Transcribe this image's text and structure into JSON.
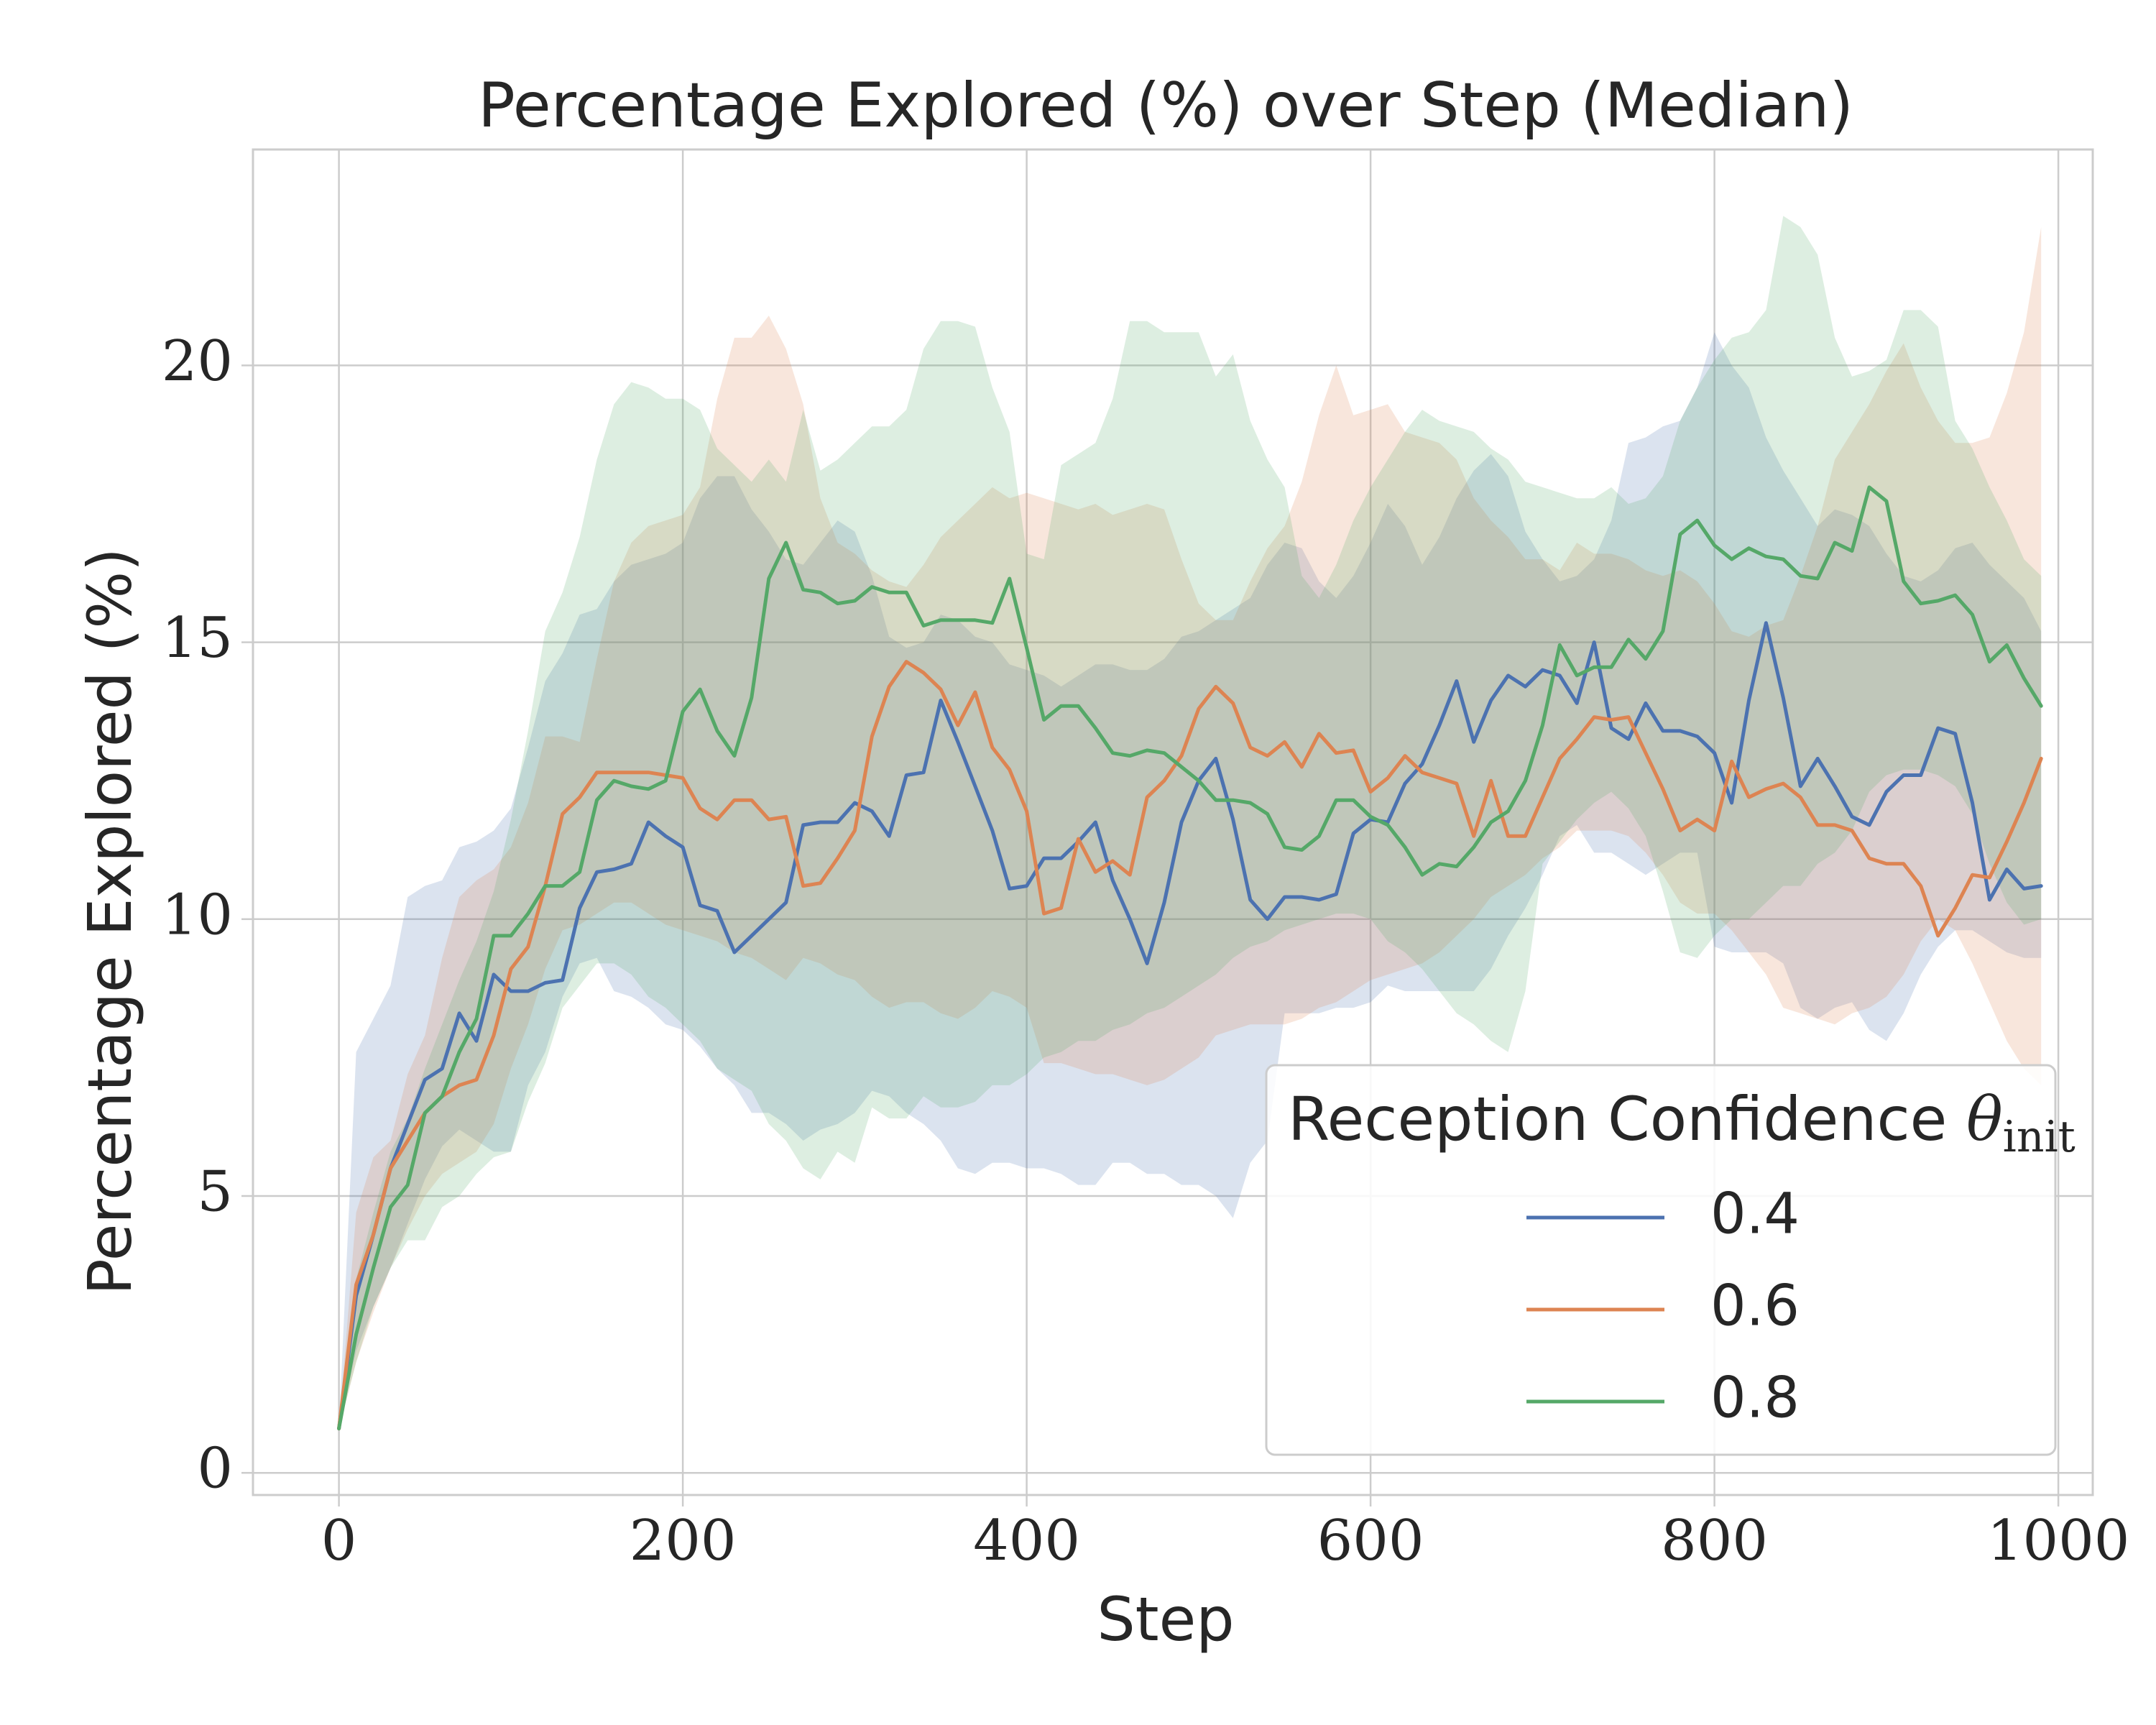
{
  "chart_data": {
    "type": "line",
    "title": "Percentage Explored (%) over Step (Median)",
    "xlabel": "Step",
    "ylabel": "Percentage Explored (%)",
    "xlim": [
      -50,
      1020
    ],
    "ylim": [
      -0.4,
      23.9
    ],
    "xticks": [
      0,
      200,
      400,
      600,
      800,
      1000
    ],
    "yticks": [
      0,
      5,
      10,
      15,
      20
    ],
    "grid": true,
    "legend": {
      "title_main": "Reception Confidence ",
      "title_symbol": "θ",
      "title_sub": "init",
      "position": "lower-right"
    },
    "x": [
      0,
      10,
      20,
      30,
      40,
      50,
      60,
      70,
      80,
      90,
      100,
      110,
      120,
      130,
      140,
      150,
      160,
      170,
      180,
      190,
      200,
      210,
      220,
      230,
      240,
      250,
      260,
      270,
      280,
      290,
      300,
      310,
      320,
      330,
      340,
      350,
      360,
      370,
      380,
      390,
      400,
      410,
      420,
      430,
      440,
      450,
      460,
      470,
      480,
      490,
      500,
      510,
      520,
      530,
      540,
      550,
      560,
      570,
      580,
      590,
      600,
      610,
      620,
      630,
      640,
      650,
      660,
      670,
      680,
      690,
      700,
      710,
      720,
      730,
      740,
      750,
      760,
      770,
      780,
      790,
      800,
      810,
      820,
      830,
      840,
      850,
      860,
      870,
      880,
      890,
      900,
      910,
      920,
      930,
      940,
      950,
      960,
      970,
      980,
      990
    ],
    "series": [
      {
        "name": "0.4",
        "color": "#4c72b0",
        "values": [
          0.8,
          3.2,
          4.3,
          5.5,
          6.3,
          7.1,
          7.3,
          8.3,
          7.8,
          9.0,
          8.7,
          8.7,
          8.85,
          8.9,
          10.2,
          10.85,
          10.9,
          11.0,
          11.75,
          11.5,
          11.3,
          10.25,
          10.15,
          9.4,
          9.7,
          10.0,
          10.3,
          11.7,
          11.75,
          11.75,
          12.1,
          11.95,
          11.5,
          12.6,
          12.65,
          13.95,
          13.2,
          12.4,
          11.6,
          10.55,
          10.6,
          11.1,
          11.1,
          11.4,
          11.75,
          10.7,
          10.0,
          9.2,
          10.3,
          11.75,
          12.5,
          12.9,
          11.8,
          10.35,
          10.0,
          10.4,
          10.4,
          10.35,
          10.45,
          11.55,
          11.8,
          11.75,
          12.45,
          12.8,
          13.5,
          14.3,
          13.2,
          13.95,
          14.4,
          14.2,
          14.5,
          14.4,
          13.9,
          15.0,
          13.45,
          13.25,
          13.9,
          13.4,
          13.4,
          13.3,
          13.0,
          12.1,
          13.95,
          15.35,
          14.0,
          12.4,
          12.9,
          12.4,
          11.85,
          11.7,
          12.3,
          12.6,
          12.6,
          13.45,
          13.35,
          12.1,
          10.35,
          10.9,
          10.55,
          10.6
        ],
        "lower": [
          0.8,
          2.2,
          3.0,
          3.7,
          4.5,
          5.3,
          5.9,
          6.2,
          6.0,
          5.8,
          5.8,
          7.0,
          7.6,
          8.6,
          9.2,
          9.3,
          8.7,
          8.6,
          8.4,
          8.1,
          8.0,
          7.7,
          7.3,
          7.0,
          6.5,
          6.5,
          6.3,
          6.0,
          6.2,
          6.3,
          6.5,
          6.9,
          6.8,
          6.5,
          6.3,
          6.0,
          5.5,
          5.4,
          5.6,
          5.6,
          5.5,
          5.5,
          5.4,
          5.2,
          5.2,
          5.6,
          5.6,
          5.4,
          5.4,
          5.2,
          5.2,
          5.0,
          4.6,
          5.6,
          6.0,
          8.3,
          8.3,
          8.3,
          8.4,
          8.4,
          8.5,
          8.8,
          8.7,
          8.7,
          8.7,
          8.7,
          8.7,
          9.1,
          9.7,
          10.2,
          10.8,
          11.5,
          11.7,
          11.2,
          11.2,
          11.0,
          10.8,
          11.0,
          11.2,
          11.2,
          9.5,
          9.4,
          9.4,
          9.4,
          9.2,
          8.4,
          8.2,
          8.4,
          8.5,
          8.0,
          7.8,
          8.3,
          9.0,
          9.5,
          9.8,
          9.8,
          9.6,
          9.4,
          9.3,
          9.3
        ],
        "upper": [
          0.8,
          7.6,
          8.2,
          8.8,
          10.4,
          10.6,
          10.7,
          11.3,
          11.4,
          11.6,
          12.0,
          13.1,
          14.3,
          14.8,
          15.5,
          15.6,
          16.1,
          16.4,
          16.5,
          16.6,
          16.8,
          17.6,
          18.0,
          18.0,
          17.4,
          17.0,
          16.5,
          16.4,
          16.8,
          17.2,
          17.0,
          16.2,
          15.1,
          14.9,
          15.0,
          15.5,
          15.4,
          15.1,
          15.0,
          14.6,
          14.5,
          14.4,
          14.2,
          14.4,
          14.6,
          14.6,
          14.5,
          14.5,
          14.7,
          15.1,
          15.2,
          15.4,
          15.6,
          15.8,
          16.4,
          16.8,
          16.7,
          16.1,
          15.8,
          16.2,
          16.8,
          17.5,
          17.1,
          16.4,
          16.9,
          17.6,
          18.1,
          18.4,
          18.0,
          17.0,
          16.5,
          16.1,
          16.2,
          16.5,
          17.2,
          18.6,
          18.7,
          18.9,
          19.0,
          19.6,
          20.6,
          20.0,
          19.6,
          18.7,
          18.1,
          17.6,
          17.1,
          17.4,
          17.3,
          17.1,
          16.6,
          16.2,
          16.1,
          16.3,
          16.7,
          16.8,
          16.4,
          16.1,
          15.8,
          15.2
        ]
      },
      {
        "name": "0.6",
        "color": "#dd8452",
        "values": [
          0.8,
          3.4,
          4.3,
          5.5,
          6.0,
          6.5,
          6.8,
          7.0,
          7.1,
          7.9,
          9.1,
          9.5,
          10.6,
          11.9,
          12.2,
          12.65,
          12.65,
          12.65,
          12.65,
          12.6,
          12.55,
          12.0,
          11.8,
          12.15,
          12.15,
          11.8,
          11.85,
          10.6,
          10.65,
          11.1,
          11.6,
          13.3,
          14.2,
          14.65,
          14.45,
          14.15,
          13.5,
          14.1,
          13.1,
          12.7,
          11.95,
          10.1,
          10.2,
          11.45,
          10.85,
          11.05,
          10.8,
          12.2,
          12.5,
          12.95,
          13.8,
          14.2,
          13.9,
          13.1,
          12.95,
          13.2,
          12.75,
          13.35,
          13.0,
          13.05,
          12.3,
          12.55,
          12.95,
          12.65,
          12.55,
          12.45,
          11.5,
          12.5,
          11.5,
          11.5,
          12.2,
          12.9,
          13.25,
          13.65,
          13.6,
          13.65,
          13.0,
          12.35,
          11.6,
          11.8,
          11.6,
          12.85,
          12.2,
          12.35,
          12.45,
          12.2,
          11.7,
          11.7,
          11.6,
          11.1,
          11.0,
          11.0,
          10.6,
          9.7,
          10.2,
          10.8,
          10.75,
          11.4,
          12.1,
          12.9
        ],
        "lower": [
          0.8,
          2.0,
          2.9,
          3.7,
          4.4,
          5.0,
          5.4,
          5.6,
          5.8,
          6.3,
          7.3,
          8.1,
          9.1,
          9.8,
          9.9,
          10.1,
          10.3,
          10.3,
          10.1,
          9.9,
          9.8,
          9.7,
          9.6,
          9.4,
          9.3,
          9.1,
          8.9,
          9.3,
          9.2,
          9.0,
          8.9,
          8.6,
          8.4,
          8.5,
          8.5,
          8.3,
          8.2,
          8.4,
          8.7,
          8.6,
          8.4,
          7.4,
          7.4,
          7.3,
          7.2,
          7.2,
          7.1,
          7.0,
          7.1,
          7.3,
          7.5,
          7.9,
          8.0,
          8.1,
          8.1,
          8.1,
          8.2,
          8.4,
          8.5,
          8.7,
          8.9,
          9.0,
          9.1,
          9.2,
          9.4,
          9.7,
          10.0,
          10.4,
          10.6,
          10.8,
          11.1,
          11.3,
          11.6,
          11.6,
          11.6,
          11.5,
          11.2,
          10.8,
          10.3,
          10.1,
          10.1,
          9.8,
          9.4,
          9.0,
          8.4,
          8.3,
          8.2,
          8.1,
          8.3,
          8.4,
          8.6,
          9.0,
          9.6,
          10.0,
          9.8,
          9.2,
          8.5,
          7.8,
          7.3,
          7.0
        ],
        "upper": [
          0.8,
          4.7,
          5.7,
          6.0,
          7.2,
          7.9,
          9.3,
          10.4,
          10.7,
          10.9,
          11.3,
          12.1,
          13.3,
          13.3,
          13.2,
          14.7,
          16.1,
          16.8,
          17.1,
          17.2,
          17.3,
          17.8,
          19.4,
          20.5,
          20.5,
          20.9,
          20.3,
          19.3,
          17.6,
          16.8,
          16.6,
          16.3,
          16.1,
          16.0,
          16.4,
          16.9,
          17.2,
          17.5,
          17.8,
          17.6,
          17.7,
          17.6,
          17.5,
          17.4,
          17.5,
          17.3,
          17.4,
          17.5,
          17.4,
          16.5,
          15.7,
          15.4,
          15.4,
          16.1,
          16.7,
          17.1,
          17.9,
          19.1,
          20.0,
          19.1,
          19.2,
          19.3,
          18.8,
          18.7,
          18.6,
          18.3,
          17.6,
          17.2,
          16.9,
          16.5,
          16.5,
          16.3,
          16.8,
          16.6,
          16.6,
          16.5,
          16.3,
          16.2,
          16.3,
          16.1,
          15.7,
          15.2,
          15.1,
          15.3,
          15.4,
          16.2,
          17.1,
          18.3,
          18.8,
          19.3,
          19.9,
          20.4,
          19.6,
          19.0,
          18.6,
          18.6,
          18.7,
          19.5,
          20.6,
          22.5
        ]
      },
      {
        "name": "0.8",
        "color": "#55a868",
        "values": [
          0.8,
          2.5,
          3.7,
          4.8,
          5.2,
          6.5,
          6.8,
          7.6,
          8.2,
          9.7,
          9.7,
          10.1,
          10.6,
          10.6,
          10.85,
          12.15,
          12.5,
          12.4,
          12.35,
          12.5,
          13.75,
          14.15,
          13.4,
          12.95,
          14.0,
          16.15,
          16.8,
          15.95,
          15.9,
          15.7,
          15.75,
          16.0,
          15.9,
          15.9,
          15.3,
          15.4,
          15.4,
          15.4,
          15.35,
          16.15,
          14.9,
          13.6,
          13.85,
          13.85,
          13.45,
          13.0,
          12.95,
          13.05,
          13.0,
          12.75,
          12.5,
          12.15,
          12.15,
          12.1,
          11.9,
          11.3,
          11.25,
          11.5,
          12.15,
          12.15,
          11.85,
          11.7,
          11.3,
          10.8,
          11.0,
          10.95,
          11.3,
          11.75,
          11.95,
          12.5,
          13.5,
          14.95,
          14.4,
          14.55,
          14.55,
          15.05,
          14.7,
          15.2,
          16.95,
          17.2,
          16.75,
          16.5,
          16.7,
          16.55,
          16.5,
          16.2,
          16.15,
          16.8,
          16.65,
          17.8,
          17.55,
          16.1,
          15.7,
          15.75,
          15.85,
          15.5,
          14.65,
          14.95,
          14.35,
          13.85
        ],
        "lower": [
          0.8,
          2.0,
          3.0,
          3.7,
          4.2,
          4.2,
          4.8,
          5.0,
          5.4,
          5.7,
          5.8,
          6.7,
          7.4,
          8.4,
          8.8,
          9.2,
          9.2,
          9.0,
          8.6,
          8.4,
          8.1,
          7.8,
          7.3,
          7.1,
          6.9,
          6.3,
          6.0,
          5.5,
          5.3,
          5.8,
          5.6,
          6.6,
          6.4,
          6.4,
          6.8,
          6.6,
          6.6,
          6.7,
          7.0,
          7.0,
          7.2,
          7.5,
          7.6,
          7.8,
          7.8,
          8.0,
          8.1,
          8.3,
          8.4,
          8.6,
          8.8,
          9.0,
          9.3,
          9.5,
          9.6,
          9.8,
          9.9,
          10.0,
          10.1,
          10.1,
          10.0,
          9.6,
          9.4,
          9.1,
          8.7,
          8.3,
          8.1,
          7.8,
          7.6,
          8.7,
          11.0,
          11.4,
          11.8,
          12.1,
          12.3,
          12.0,
          11.5,
          10.5,
          9.4,
          9.3,
          9.7,
          10.0,
          10.0,
          10.3,
          10.6,
          10.6,
          11.0,
          11.2,
          11.6,
          12.3,
          12.6,
          12.7,
          12.7,
          12.6,
          12.4,
          11.9,
          11.0,
          10.3,
          9.9,
          10.0
        ],
        "upper": [
          0.8,
          3.5,
          4.7,
          5.8,
          6.4,
          7.3,
          8.1,
          8.9,
          9.6,
          10.5,
          11.8,
          13.4,
          15.2,
          15.9,
          16.9,
          18.3,
          19.3,
          19.7,
          19.6,
          19.4,
          19.4,
          19.2,
          18.5,
          18.2,
          17.9,
          18.3,
          17.9,
          19.2,
          18.1,
          18.3,
          18.6,
          18.9,
          18.9,
          19.2,
          20.3,
          20.8,
          20.8,
          20.7,
          19.6,
          18.8,
          16.6,
          16.5,
          18.2,
          18.4,
          18.6,
          19.4,
          20.8,
          20.8,
          20.6,
          20.6,
          20.6,
          19.8,
          20.2,
          19.0,
          18.3,
          17.8,
          16.2,
          15.8,
          16.4,
          17.2,
          17.8,
          18.3,
          18.8,
          19.2,
          19.0,
          18.9,
          18.8,
          18.5,
          18.3,
          17.9,
          17.8,
          17.7,
          17.6,
          17.6,
          17.8,
          17.5,
          17.6,
          18.0,
          19.0,
          19.6,
          20.1,
          20.5,
          20.6,
          21.0,
          22.7,
          22.5,
          22.0,
          20.5,
          19.8,
          19.9,
          20.1,
          21.0,
          21.0,
          20.7,
          19.0,
          18.5,
          17.8,
          17.2,
          16.5,
          16.2
        ]
      }
    ]
  }
}
